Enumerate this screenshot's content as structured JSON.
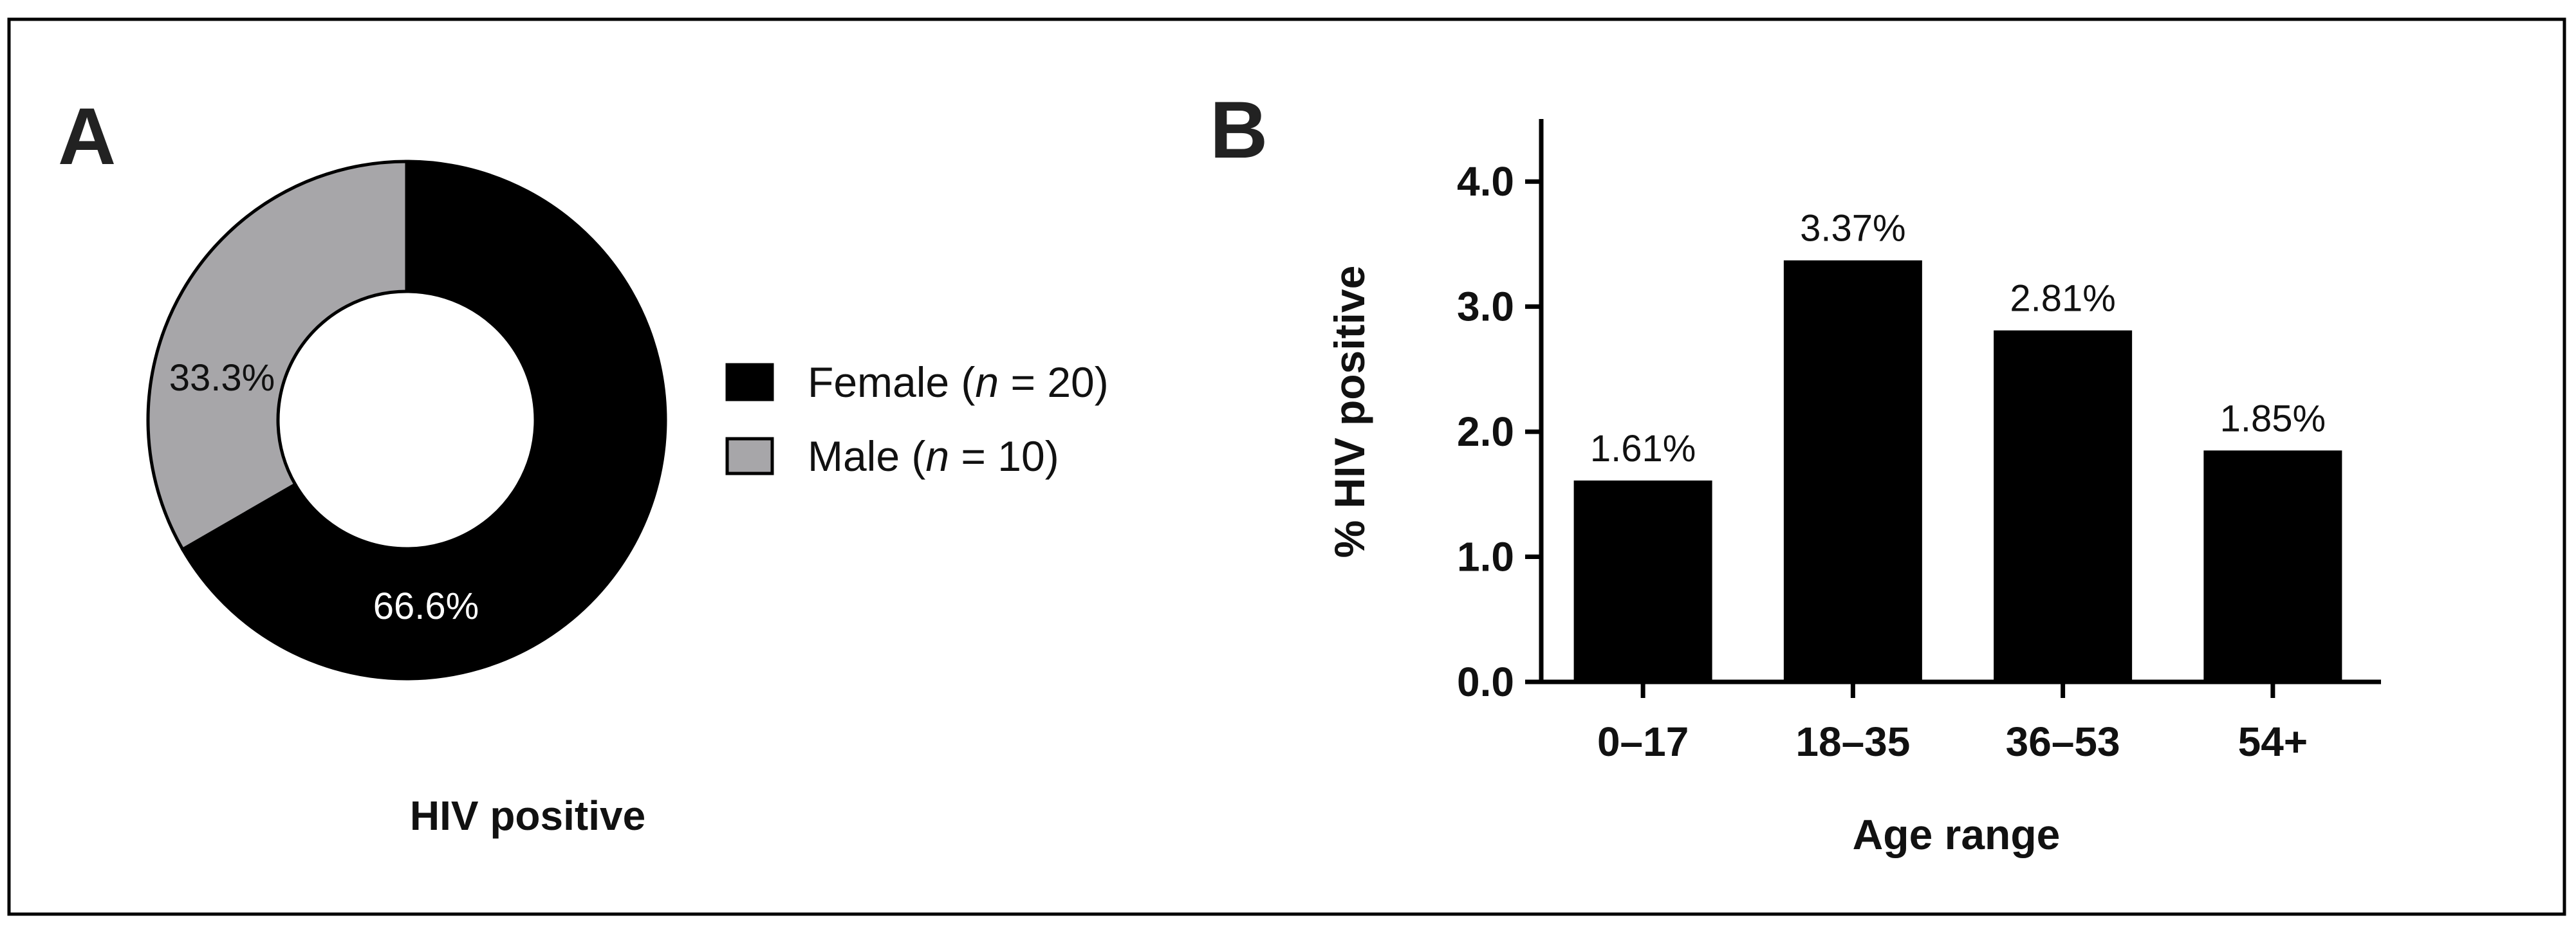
{
  "panels": {
    "a_label": "A",
    "b_label": "B"
  },
  "colors": {
    "female": "#000000",
    "male": "#a7a6a9",
    "bar": "#000000",
    "frame": "#000000",
    "background": "#ffffff"
  },
  "chart_data": [
    {
      "type": "pie",
      "subtype": "donut",
      "panel": "A",
      "title": "HIV positive",
      "slices": [
        {
          "label": "Female",
          "n": "20",
          "value": 66.6,
          "value_label": "66.6%"
        },
        {
          "label": "Male",
          "n": "10",
          "value": 33.3,
          "value_label": "33.3%"
        }
      ],
      "legend": {
        "placement": "right",
        "entries": [
          {
            "prefix": "Female (",
            "italic": "n",
            "suffix": " = 20)"
          },
          {
            "prefix": "Male (",
            "italic": "n",
            "suffix": " = 10)"
          }
        ]
      }
    },
    {
      "type": "bar",
      "panel": "B",
      "categories": [
        "0–17",
        "18–35",
        "36–53",
        "54+"
      ],
      "values": [
        1.61,
        3.37,
        2.81,
        1.85
      ],
      "data_labels": [
        "1.61%",
        "3.37%",
        "2.81%",
        "1.85%"
      ],
      "xlabel": "Age range",
      "ylabel": "% HIV positive",
      "ylim": [
        0,
        4.5
      ],
      "yticks": [
        0.0,
        1.0,
        2.0,
        3.0,
        4.0
      ],
      "ytick_labels": [
        "0.0",
        "1.0",
        "2.0",
        "3.0",
        "4.0"
      ],
      "grid": false
    }
  ]
}
